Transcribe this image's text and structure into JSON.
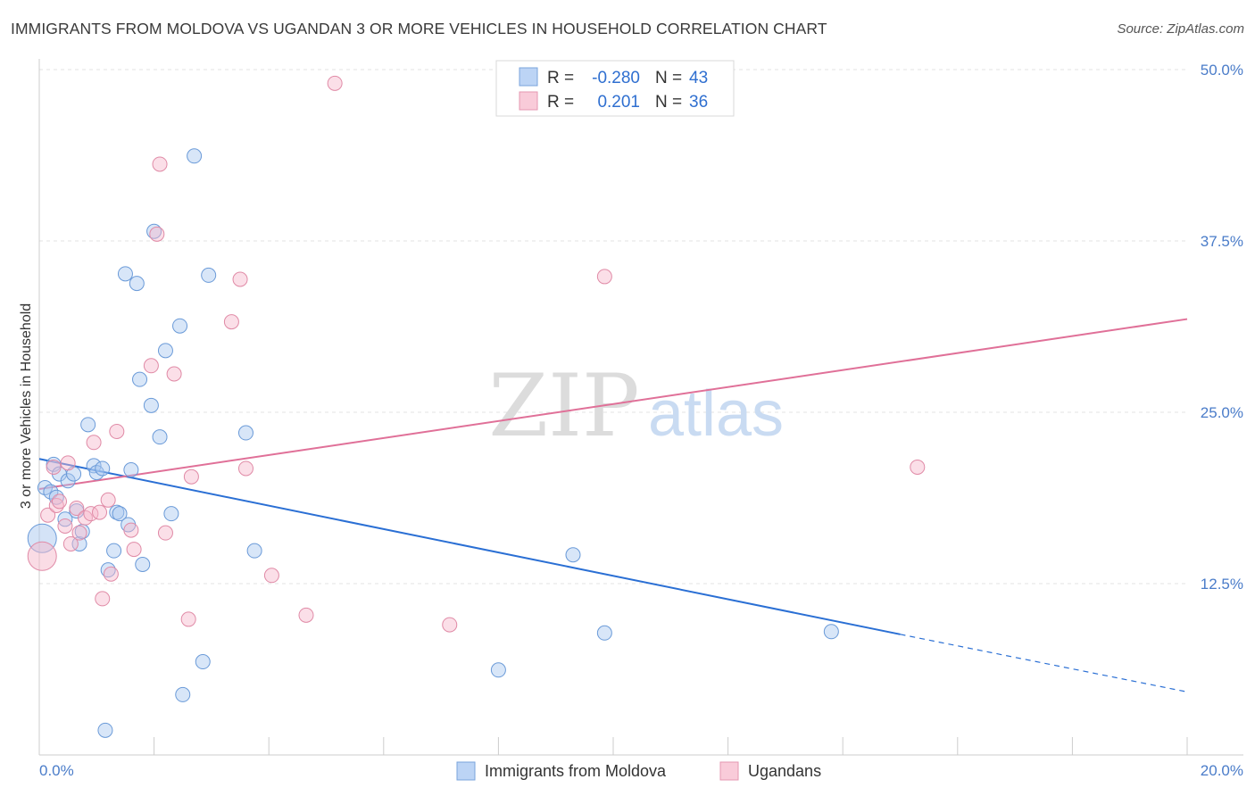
{
  "title": "IMMIGRANTS FROM MOLDOVA VS UGANDAN 3 OR MORE VEHICLES IN HOUSEHOLD CORRELATION CHART",
  "source": "Source: ZipAtlas.com",
  "watermark": {
    "zip": "ZIP",
    "atlas": "atlas"
  },
  "legend": {
    "rows": [
      {
        "r_label": "R =",
        "r_value": "-0.280",
        "n_label": "N =",
        "n_value": "43"
      },
      {
        "r_label": "R =",
        "r_value": "0.201",
        "n_label": "N =",
        "n_value": "36"
      }
    ]
  },
  "chart_data": {
    "type": "scatter",
    "xlabel": "",
    "ylabel": "3 or more Vehicles in Household",
    "xlim": [
      0,
      20
    ],
    "ylim": [
      0,
      50
    ],
    "x_tick_labels": [
      "0.0%",
      "20.0%"
    ],
    "y_ticks": [
      12.5,
      25.0,
      37.5,
      50.0
    ],
    "y_tick_labels": [
      "12.5%",
      "25.0%",
      "37.5%",
      "50.0%"
    ],
    "grid": true,
    "legend_position": "top-center",
    "series": [
      {
        "name": "Immigrants from Moldova",
        "color": "#a9c8f0",
        "stroke": "#6a9ad8",
        "line_color": "#2a6fd4",
        "trend": {
          "x0": 0.0,
          "y0": 21.6,
          "x1": 15.0,
          "y1": 8.8,
          "dash_to_x": 20.0,
          "dash_to_y": 4.6
        },
        "points": [
          [
            0.05,
            15.8
          ],
          [
            0.1,
            19.5
          ],
          [
            0.2,
            19.2
          ],
          [
            0.25,
            21.2
          ],
          [
            0.3,
            18.8
          ],
          [
            0.35,
            20.5
          ],
          [
            0.45,
            17.2
          ],
          [
            0.5,
            20.0
          ],
          [
            0.6,
            20.5
          ],
          [
            0.65,
            17.8
          ],
          [
            0.7,
            15.4
          ],
          [
            0.75,
            16.3
          ],
          [
            0.85,
            24.1
          ],
          [
            0.95,
            21.1
          ],
          [
            1.0,
            20.6
          ],
          [
            1.1,
            20.9
          ],
          [
            1.15,
            1.8
          ],
          [
            1.2,
            13.5
          ],
          [
            1.3,
            14.9
          ],
          [
            1.35,
            17.7
          ],
          [
            1.4,
            17.6
          ],
          [
            1.5,
            35.1
          ],
          [
            1.55,
            16.8
          ],
          [
            1.6,
            20.8
          ],
          [
            1.7,
            34.4
          ],
          [
            1.75,
            27.4
          ],
          [
            1.8,
            13.9
          ],
          [
            1.95,
            25.5
          ],
          [
            2.0,
            38.2
          ],
          [
            2.1,
            23.2
          ],
          [
            2.2,
            29.5
          ],
          [
            2.3,
            17.6
          ],
          [
            2.45,
            31.3
          ],
          [
            2.5,
            4.4
          ],
          [
            2.7,
            43.7
          ],
          [
            2.85,
            6.8
          ],
          [
            2.95,
            35.0
          ],
          [
            3.6,
            23.5
          ],
          [
            3.75,
            14.9
          ],
          [
            8.0,
            6.2
          ],
          [
            9.3,
            14.6
          ],
          [
            9.85,
            8.9
          ],
          [
            13.8,
            9.0
          ]
        ]
      },
      {
        "name": "Ugandans",
        "color": "#f6b9cb",
        "stroke": "#e08aa6",
        "line_color": "#e07098",
        "trend": {
          "x0": 0.0,
          "y0": 19.4,
          "x1": 20.0,
          "y1": 31.8
        },
        "points": [
          [
            0.05,
            14.5
          ],
          [
            0.15,
            17.5
          ],
          [
            0.25,
            21.0
          ],
          [
            0.3,
            18.2
          ],
          [
            0.35,
            18.5
          ],
          [
            0.45,
            16.7
          ],
          [
            0.5,
            21.3
          ],
          [
            0.55,
            15.4
          ],
          [
            0.65,
            18.0
          ],
          [
            0.7,
            16.2
          ],
          [
            0.8,
            17.3
          ],
          [
            0.9,
            17.6
          ],
          [
            0.95,
            22.8
          ],
          [
            1.05,
            17.7
          ],
          [
            1.1,
            11.4
          ],
          [
            1.2,
            18.6
          ],
          [
            1.25,
            13.2
          ],
          [
            1.35,
            23.6
          ],
          [
            1.6,
            16.4
          ],
          [
            1.65,
            15.0
          ],
          [
            1.95,
            28.4
          ],
          [
            2.05,
            38.0
          ],
          [
            2.1,
            43.1
          ],
          [
            2.2,
            16.2
          ],
          [
            2.35,
            27.8
          ],
          [
            2.6,
            9.9
          ],
          [
            2.65,
            20.3
          ],
          [
            3.35,
            31.6
          ],
          [
            3.5,
            34.7
          ],
          [
            3.6,
            20.9
          ],
          [
            4.05,
            13.1
          ],
          [
            4.65,
            10.2
          ],
          [
            5.15,
            49.0
          ],
          [
            7.15,
            9.5
          ],
          [
            9.85,
            34.9
          ],
          [
            15.3,
            21.0
          ]
        ]
      }
    ]
  }
}
